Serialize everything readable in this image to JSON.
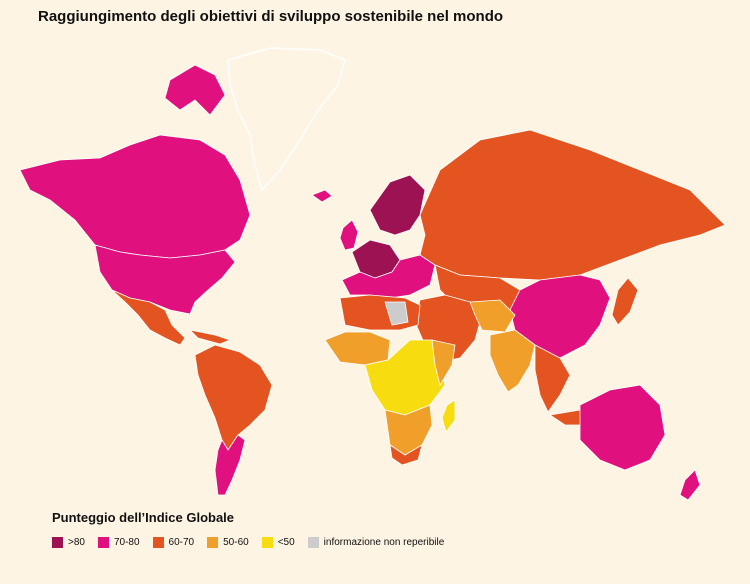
{
  "title": "Raggiungimento degli obiettivi di sviluppo sostenibile nel mondo",
  "legend": {
    "title": "Punteggio dell’Indice Globale",
    "items": [
      {
        "label": ">80",
        "color": "#9c1253"
      },
      {
        "label": "70-80",
        "color": "#e0107e"
      },
      {
        "label": "60-70",
        "color": "#e35420"
      },
      {
        "label": "50-60",
        "color": "#f0a02a"
      },
      {
        "label": "<50",
        "color": "#f7dd10"
      },
      {
        "label": "informazione non reperibile",
        "color": "#cccccc"
      }
    ]
  },
  "map": {
    "background": "#fdf4e3",
    "outline_color": "#ffffff"
  }
}
